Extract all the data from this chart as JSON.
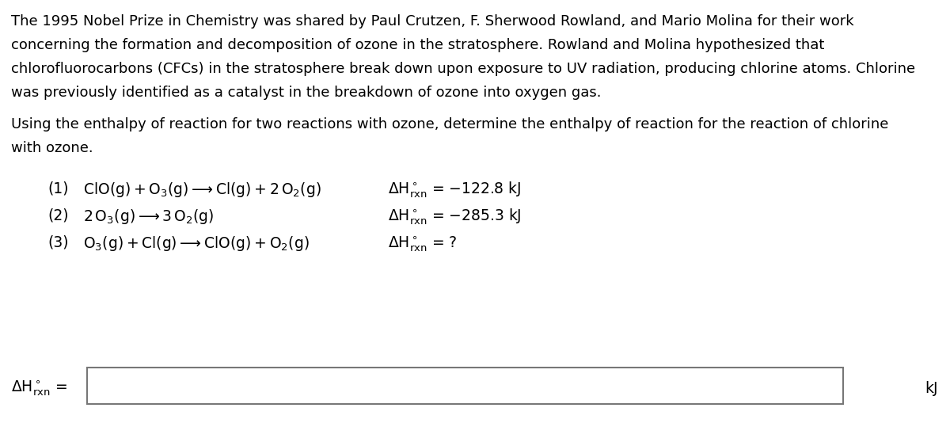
{
  "background_color": "#ffffff",
  "text_color": "#000000",
  "font_family": "DejaVu Sans",
  "paragraph1_lines": [
    "The 1995 Nobel Prize in Chemistry was shared by Paul Crutzen, F. Sherwood Rowland, and Mario Molina for their work",
    "concerning the formation and decomposition of ozone in the stratosphere. Rowland and Molina hypothesized that",
    "chlorofluorocarbons (CFCs) in the stratosphere break down upon exposure to UV radiation, producing chlorine atoms. Chlorine",
    "was previously identified as a catalyst in the breakdown of ozone into oxygen gas."
  ],
  "paragraph2_lines": [
    "Using the enthalpy of reaction for two reactions with ozone, determine the enthalpy of reaction for the reaction of chlorine",
    "with ozone."
  ],
  "reaction1_label": "(1)",
  "reaction1_eq": "$\\mathregular{ClO(g) + O_3(g) \\longrightarrow Cl(g) + 2\\,O_2(g)}$",
  "reaction1_dH": "$\\mathregular{\\Delta H^\\circ_{rxn}}$ = −122.8 kJ",
  "reaction2_label": "(2)",
  "reaction2_eq": "$\\mathregular{2\\,O_3(g) \\longrightarrow 3\\,O_2(g)}$",
  "reaction2_dH": "$\\mathregular{\\Delta H^\\circ_{rxn}}$ = −285.3 kJ",
  "reaction3_label": "(3)",
  "reaction3_eq": "$\\mathregular{O_3(g) + Cl(g) \\longrightarrow ClO(g) + O_2(g)}$",
  "reaction3_dH": "$\\mathregular{\\Delta H^\\circ_{rxn}}$ = ?",
  "answer_label": "$\\mathregular{\\Delta H^\\circ_{rxn}}$ =",
  "answer_unit": "kJ",
  "font_size_body": 13.0,
  "font_size_reactions": 13.5,
  "font_size_answer": 13.5
}
